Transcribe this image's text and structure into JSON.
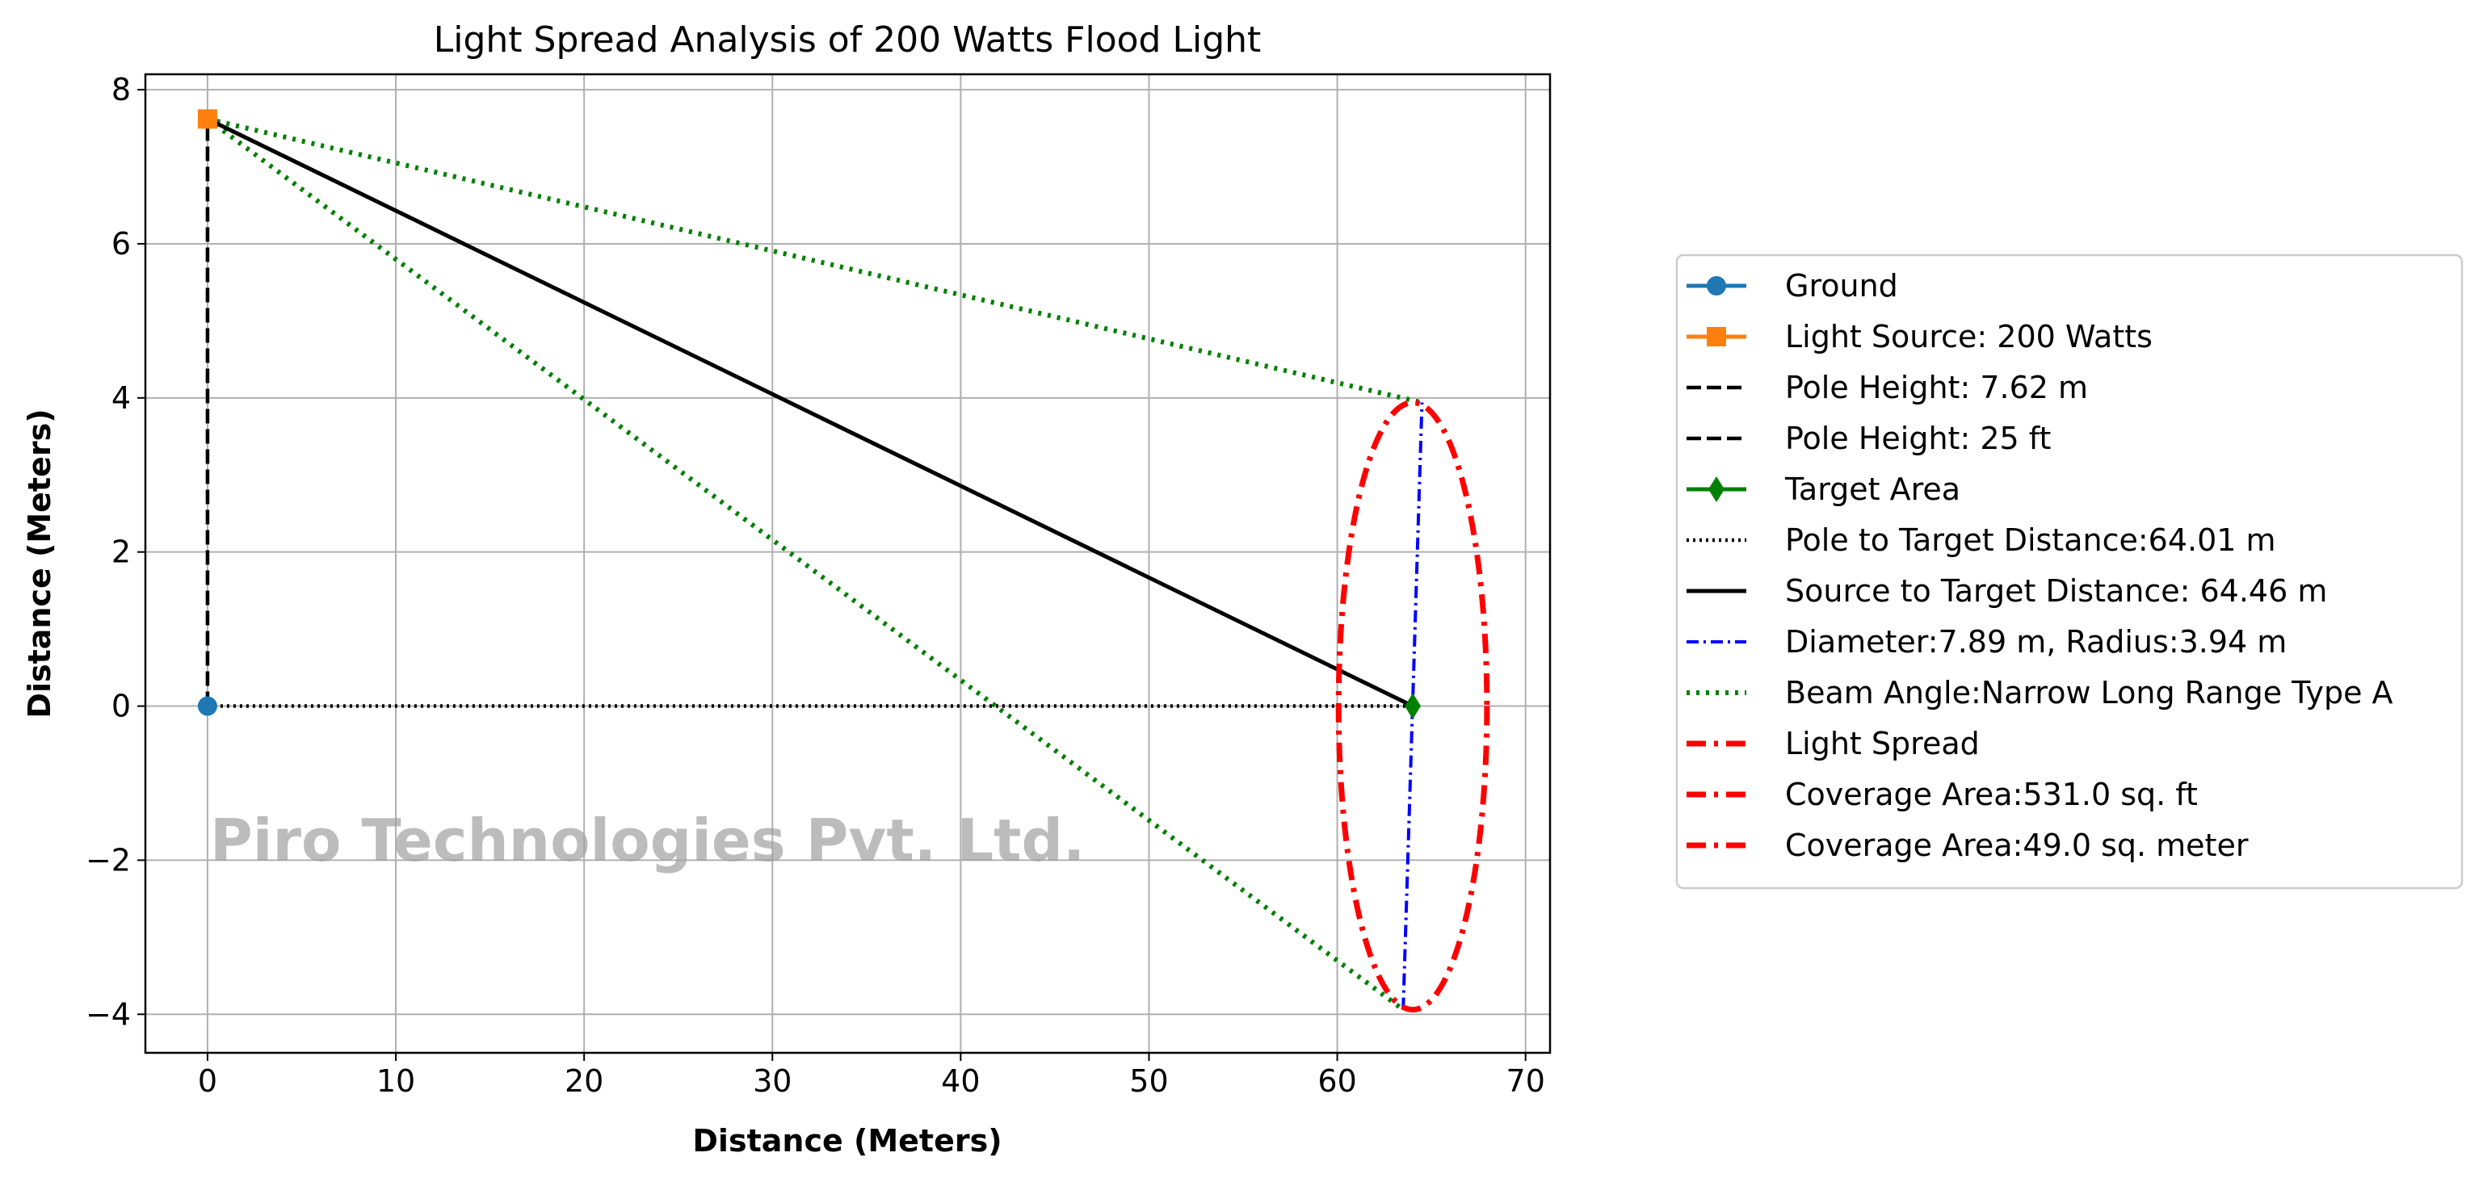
{
  "chart_data": {
    "type": "line",
    "title": "Light Spread Analysis of 200 Watts Flood Light",
    "xlabel": "Distance (Meters)",
    "ylabel": "Distance (Meters)",
    "xlim": [
      -3.3,
      71.3
    ],
    "ylim": [
      -4.5,
      8.2
    ],
    "xticks": [
      0,
      10,
      20,
      30,
      40,
      50,
      60,
      70
    ],
    "yticks": [
      -4,
      -2,
      0,
      2,
      4,
      6,
      8
    ],
    "xtick_labels": [
      "0",
      "10",
      "20",
      "30",
      "40",
      "50",
      "60",
      "70"
    ],
    "ytick_labels": [
      "−4",
      "−2",
      "0",
      "2",
      "4",
      "6",
      "8"
    ],
    "grid": true,
    "watermark": "Piro Technologies Pvt. Ltd.",
    "series": [
      {
        "name": "Ground",
        "color": "#1f77b4",
        "style": "solid",
        "marker": "circle",
        "x": [
          0
        ],
        "y": [
          0
        ]
      },
      {
        "name": "Light Source: 200 Watts",
        "color": "#ff7f0e",
        "style": "solid",
        "marker": "square",
        "x": [
          0
        ],
        "y": [
          7.62
        ]
      },
      {
        "name": "Pole Height: 7.62 m",
        "color": "#000000",
        "style": "dashed",
        "marker": "none",
        "x": [
          0,
          0
        ],
        "y": [
          0,
          7.62
        ]
      },
      {
        "name": "Pole Height: 25 ft",
        "color": "#000000",
        "style": "dashed",
        "marker": "none",
        "x": [],
        "y": []
      },
      {
        "name": "Target Area",
        "color": "#008000",
        "style": "solid",
        "marker": "diamond",
        "x": [
          64.01
        ],
        "y": [
          0
        ]
      },
      {
        "name": "Pole to Target Distance:64.01 m",
        "color": "#000000",
        "style": "dotted",
        "marker": "none",
        "x": [
          0,
          64.01
        ],
        "y": [
          0,
          0
        ]
      },
      {
        "name": "Source to Target Distance: 64.46 m",
        "color": "#000000",
        "style": "solid",
        "marker": "none",
        "x": [
          0,
          64.01
        ],
        "y": [
          7.62,
          0
        ]
      },
      {
        "name": "Diameter:7.89 m, Radius:3.94 m",
        "color": "#0000ff",
        "style": "dashdot",
        "marker": "none",
        "x": [
          63.5,
          64.5
        ],
        "y": [
          -3.94,
          3.94
        ]
      },
      {
        "name": "Beam Angle:Narrow Long Range Type A",
        "color": "#008000",
        "style": "dotted-thick",
        "marker": "none",
        "x": [
          0,
          64.5,
          null,
          0,
          63.5
        ],
        "y": [
          7.62,
          3.94,
          null,
          7.62,
          -3.94
        ]
      },
      {
        "name": "Light Spread",
        "color": "#ff0000",
        "style": "dashdot-thick",
        "marker": "none",
        "ellipse": {
          "cx": 64.01,
          "cy": 0,
          "rx": 3.94,
          "ry": 3.94
        }
      },
      {
        "name": "Coverage Area:531.0 sq. ft",
        "color": "#ff0000",
        "style": "dashdot-thick",
        "marker": "none",
        "x": [],
        "y": []
      },
      {
        "name": "Coverage Area:49.0 sq. meter",
        "color": "#ff0000",
        "style": "dashdot-thick",
        "marker": "none",
        "x": [],
        "y": []
      }
    ],
    "legend_position": "center-right"
  }
}
